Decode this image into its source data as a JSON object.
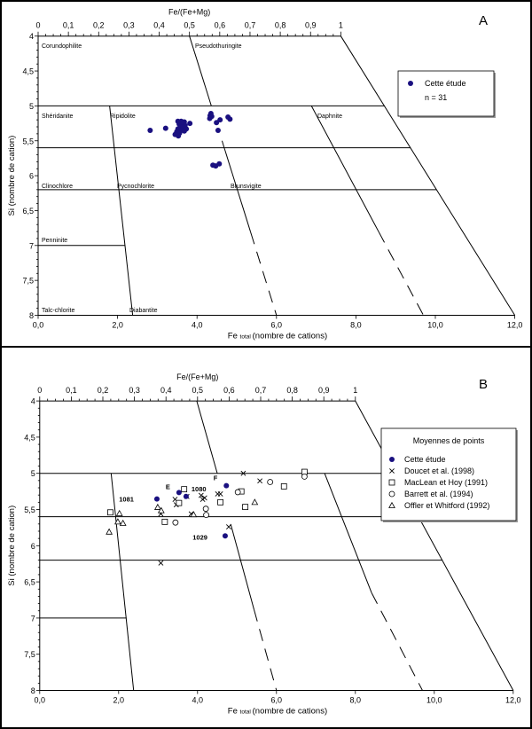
{
  "chart_data": [
    {
      "panel_label": "A",
      "type": "scatter",
      "top_axis_label": "Fe/(Fe+Mg)",
      "xlabel_main": "Fe",
      "xlabel_sub": "total",
      "xlabel_rest": "(nombre de cations)",
      "ylabel": "Si  (nombre de cation)",
      "xlim": [
        0,
        12
      ],
      "ylim": [
        4,
        8
      ],
      "y_inverted": true,
      "top_axis_range": [
        0,
        1
      ],
      "x_ticks": [
        {
          "v": 0,
          "label": "0,0"
        },
        {
          "v": 2,
          "label": "2,0"
        },
        {
          "v": 4,
          "label": "4,0"
        },
        {
          "v": 6,
          "label": "6,0"
        },
        {
          "v": 8,
          "label": "8,0"
        },
        {
          "v": 10,
          "label": "10,0"
        },
        {
          "v": 12,
          "label": "12,0"
        }
      ],
      "top_ticks": [
        {
          "v": 0,
          "label": "0"
        },
        {
          "v": 0.1,
          "label": "0,1"
        },
        {
          "v": 0.2,
          "label": "0,2"
        },
        {
          "v": 0.3,
          "label": "0,3"
        },
        {
          "v": 0.4,
          "label": "0,4"
        },
        {
          "v": 0.5,
          "label": "0,5"
        },
        {
          "v": 0.6,
          "label": "0,6"
        },
        {
          "v": 0.7,
          "label": "0,7"
        },
        {
          "v": 0.8,
          "label": "0,8"
        },
        {
          "v": 0.9,
          "label": "0,9"
        },
        {
          "v": 1,
          "label": "1"
        }
      ],
      "y_ticks": [
        {
          "v": 4,
          "label": "4"
        },
        {
          "v": 4.5,
          "label": "4,5"
        },
        {
          "v": 5,
          "label": "5"
        },
        {
          "v": 5.5,
          "label": "5,5"
        },
        {
          "v": 6,
          "label": "6"
        },
        {
          "v": 6.5,
          "label": "6,5"
        },
        {
          "v": 7,
          "label": "7"
        },
        {
          "v": 7.5,
          "label": "7,5"
        },
        {
          "v": 8,
          "label": "8"
        }
      ],
      "field_names": [
        "Corundophilite",
        "Pseudothuringite",
        "Shéridanite",
        "Ripidolite",
        "Daphnite",
        "Clinochlore",
        "Pycnochlorite",
        "Brunsvigite",
        "Penninite",
        "Talc-chlorite",
        "Diabantite"
      ],
      "boundaries": [
        {
          "from": [
            7.62,
            4
          ],
          "to": [
            12,
            8
          ],
          "style": "solid"
        },
        {
          "from": [
            3.81,
            4
          ],
          "to": [
            4.36,
            5
          ],
          "style": "solid"
        },
        {
          "from": [
            4.63,
            5.5
          ],
          "to": [
            5.35,
            6.81
          ],
          "style": "solid"
        },
        {
          "from": [
            5.35,
            6.81
          ],
          "to": [
            6,
            8
          ],
          "style": "dashed"
        },
        {
          "from": [
            6.88,
            5
          ],
          "to": [
            8.57,
            6.8
          ],
          "style": "solid"
        },
        {
          "from": [
            8.57,
            6.8
          ],
          "to": [
            9.7,
            8
          ],
          "style": "dashed"
        },
        {
          "from": [
            1.8,
            5
          ],
          "to": [
            2.38,
            8
          ],
          "style": "solid"
        },
        {
          "from": [
            0,
            5
          ],
          "to": [
            8.72,
            5
          ],
          "style": "solid"
        },
        {
          "from": [
            0,
            5.6
          ],
          "to": [
            9.37,
            5.6
          ],
          "style": "solid"
        },
        {
          "from": [
            0,
            6.2
          ],
          "to": [
            10.03,
            6.2
          ],
          "style": "solid"
        },
        {
          "from": [
            0,
            7
          ],
          "to": [
            2.19,
            7
          ],
          "style": "solid"
        }
      ],
      "legend": {
        "title": "",
        "entries": [
          {
            "label": "Cette étude",
            "marker": "dot"
          }
        ],
        "note": "n = 31",
        "placement": "top-right"
      },
      "series": [
        {
          "name": "Cette étude",
          "marker": "dot",
          "color": "#1a1080",
          "points": [
            [
              2.82,
              5.35
            ],
            [
              3.21,
              5.32
            ],
            [
              3.52,
              5.22
            ],
            [
              3.6,
              5.22
            ],
            [
              3.68,
              5.23
            ],
            [
              3.82,
              5.25
            ],
            [
              3.55,
              5.26
            ],
            [
              3.63,
              5.27
            ],
            [
              3.7,
              5.28
            ],
            [
              3.58,
              5.3
            ],
            [
              3.66,
              5.31
            ],
            [
              3.73,
              5.33
            ],
            [
              3.52,
              5.33
            ],
            [
              3.6,
              5.35
            ],
            [
              3.68,
              5.36
            ],
            [
              3.49,
              5.37
            ],
            [
              3.56,
              5.39
            ],
            [
              3.45,
              5.41
            ],
            [
              3.53,
              5.43
            ],
            [
              4.35,
              5.11
            ],
            [
              4.33,
              5.14
            ],
            [
              4.37,
              5.15
            ],
            [
              4.32,
              5.18
            ],
            [
              4.49,
              5.24
            ],
            [
              4.58,
              5.2
            ],
            [
              4.78,
              5.16
            ],
            [
              4.83,
              5.19
            ],
            [
              4.53,
              5.35
            ],
            [
              4.4,
              5.85
            ],
            [
              4.47,
              5.86
            ],
            [
              4.56,
              5.83
            ]
          ]
        }
      ]
    },
    {
      "panel_label": "B",
      "type": "scatter",
      "top_axis_label": "Fe/(Fe+Mg)",
      "xlabel_main": "Fe",
      "xlabel_sub": "total",
      "xlabel_rest": "(nombre de cations)",
      "ylabel": "Si  (nombre de cation)",
      "xlim": [
        0,
        12
      ],
      "ylim": [
        4,
        8
      ],
      "y_inverted": true,
      "top_axis_range": [
        0,
        1
      ],
      "x_ticks": [
        {
          "v": 0,
          "label": "0,0"
        },
        {
          "v": 2,
          "label": "2,0"
        },
        {
          "v": 4,
          "label": "4,0"
        },
        {
          "v": 6,
          "label": "6,0"
        },
        {
          "v": 8,
          "label": "8,0"
        },
        {
          "v": 10,
          "label": "10,0"
        },
        {
          "v": 12,
          "label": "12,0"
        }
      ],
      "top_ticks": [
        {
          "v": 0,
          "label": "0"
        },
        {
          "v": 0.1,
          "label": "0,1"
        },
        {
          "v": 0.2,
          "label": "0,2"
        },
        {
          "v": 0.3,
          "label": "0,3"
        },
        {
          "v": 0.4,
          "label": "0,4"
        },
        {
          "v": 0.5,
          "label": "0,5"
        },
        {
          "v": 0.6,
          "label": "0,6"
        },
        {
          "v": 0.7,
          "label": "0,7"
        },
        {
          "v": 0.8,
          "label": "0,8"
        },
        {
          "v": 0.9,
          "label": "0,9"
        },
        {
          "v": 1,
          "label": "1"
        }
      ],
      "y_ticks": [
        {
          "v": 4,
          "label": "4"
        },
        {
          "v": 4.5,
          "label": "4,5"
        },
        {
          "v": 5,
          "label": "5"
        },
        {
          "v": 5.5,
          "label": "5,5"
        },
        {
          "v": 6,
          "label": "6"
        },
        {
          "v": 6.5,
          "label": "6,5"
        },
        {
          "v": 7,
          "label": "7"
        },
        {
          "v": 7.5,
          "label": "7,5"
        },
        {
          "v": 8,
          "label": "8"
        }
      ],
      "field_names": [],
      "boundaries": [
        {
          "from": [
            8.0,
            4
          ],
          "to": [
            12,
            8
          ],
          "style": "solid"
        },
        {
          "from": [
            3.98,
            4
          ],
          "to": [
            4.5,
            5
          ],
          "style": "solid"
        },
        {
          "from": [
            4.84,
            5.7
          ],
          "to": [
            5.43,
            6.88
          ],
          "style": "solid"
        },
        {
          "from": [
            5.43,
            6.88
          ],
          "to": [
            6,
            8
          ],
          "style": "dashed"
        },
        {
          "from": [
            7.22,
            5
          ],
          "to": [
            8.41,
            6.65
          ],
          "style": "solid"
        },
        {
          "from": [
            8.41,
            6.65
          ],
          "to": [
            9.7,
            8
          ],
          "style": "dashed"
        },
        {
          "from": [
            1.81,
            5
          ],
          "to": [
            2.38,
            8
          ],
          "style": "solid"
        },
        {
          "from": [
            0,
            5
          ],
          "to": [
            9.0,
            5
          ],
          "style": "solid"
        },
        {
          "from": [
            0,
            5.6
          ],
          "to": [
            9.6,
            5.6
          ],
          "style": "solid"
        },
        {
          "from": [
            0,
            6.2
          ],
          "to": [
            10.2,
            6.2
          ],
          "style": "solid"
        },
        {
          "from": [
            0,
            7
          ],
          "to": [
            2.2,
            7
          ],
          "style": "solid"
        }
      ],
      "legend": {
        "title": "Moyennes de points",
        "entries": [
          {
            "label": "Cette étude",
            "marker": "dot"
          },
          {
            "label": "Doucet et al. (1998)",
            "marker": "cross"
          },
          {
            "label": "MacLean et Hoy (1991)",
            "marker": "square"
          },
          {
            "label": "Barrett et al. (1994)",
            "marker": "circle"
          },
          {
            "label": "Offler et Whitford (1992)",
            "marker": "triangle"
          }
        ],
        "note": "",
        "placement": "right"
      },
      "series": [
        {
          "name": "Cette étude",
          "marker": "dot",
          "color": "#1a1080",
          "points": [
            [
              2.97,
              5.355
            ],
            [
              3.53,
              5.265
            ],
            [
              3.71,
              5.32
            ],
            [
              4.73,
              5.17
            ],
            [
              4.7,
              5.865
            ]
          ],
          "point_labels": [
            "1081",
            "E",
            "1080",
            "F",
            "1029"
          ]
        },
        {
          "name": "Doucet et al. (1998)",
          "marker": "cross",
          "color": "#000000",
          "points": [
            [
              5.16,
              5.0
            ],
            [
              5.58,
              5.105
            ],
            [
              3.43,
              5.36
            ],
            [
              3.46,
              5.435
            ],
            [
              3.73,
              5.32
            ],
            [
              4.09,
              5.305
            ],
            [
              4.18,
              5.34
            ],
            [
              4.13,
              5.36
            ],
            [
              4.51,
              5.285
            ],
            [
              4.58,
              5.285
            ],
            [
              3.07,
              5.56
            ],
            [
              3.84,
              5.56
            ],
            [
              5.19,
              5.465
            ],
            [
              4.79,
              5.74
            ],
            [
              3.07,
              6.24
            ]
          ]
        },
        {
          "name": "MacLean et Hoy (1991)",
          "marker": "square",
          "color": "#000000",
          "points": [
            [
              3.66,
              5.22
            ],
            [
              3.53,
              5.41
            ],
            [
              1.79,
              5.54
            ],
            [
              3.17,
              5.67
            ],
            [
              4.58,
              5.4
            ],
            [
              5.11,
              5.25
            ],
            [
              5.21,
              5.465
            ],
            [
              6.19,
              5.18
            ],
            [
              6.71,
              4.98
            ]
          ]
        },
        {
          "name": "Barrett et al. (1994)",
          "marker": "circle",
          "color": "#000000",
          "points": [
            [
              3.44,
              5.68
            ],
            [
              4.21,
              5.49
            ],
            [
              4.22,
              5.575
            ],
            [
              5.02,
              5.26
            ],
            [
              5.84,
              5.12
            ],
            [
              6.71,
              5.045
            ]
          ]
        },
        {
          "name": "Offler et Whitford (1992)",
          "marker": "triangle",
          "color": "#000000",
          "points": [
            [
              2.99,
              5.47
            ],
            [
              3.08,
              5.515
            ],
            [
              2.02,
              5.555
            ],
            [
              1.98,
              5.67
            ],
            [
              2.11,
              5.69
            ],
            [
              1.76,
              5.81
            ],
            [
              3.9,
              5.57
            ],
            [
              5.45,
              5.4
            ]
          ]
        }
      ]
    }
  ]
}
